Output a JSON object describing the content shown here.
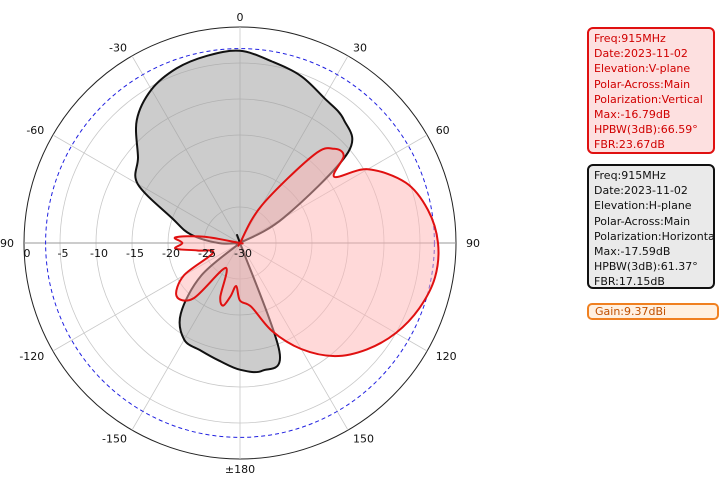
{
  "chart_data": {
    "type": "polar",
    "title": "",
    "angle_ticks": [
      {
        "angle": 0,
        "label": "0"
      },
      {
        "angle": 30,
        "label": "30"
      },
      {
        "angle": 60,
        "label": "60"
      },
      {
        "angle": 90,
        "label": "90"
      },
      {
        "angle": 120,
        "label": "120"
      },
      {
        "angle": 150,
        "label": "150"
      },
      {
        "angle": 180,
        "label": "±180"
      },
      {
        "angle": -150,
        "label": "-150"
      },
      {
        "angle": -120,
        "label": "-120"
      },
      {
        "angle": -90,
        "label": "-90"
      },
      {
        "angle": -60,
        "label": "-60"
      },
      {
        "angle": -30,
        "label": "-30"
      }
    ],
    "radial_ticks": [
      {
        "value": 0,
        "label": "0"
      },
      {
        "value": -5,
        "label": "-5"
      },
      {
        "value": -10,
        "label": "-10"
      },
      {
        "value": -15,
        "label": "-15"
      },
      {
        "value": -20,
        "label": "-20"
      },
      {
        "value": -25,
        "label": "-25"
      },
      {
        "value": -30,
        "label": "-30"
      }
    ],
    "rlim": [
      -30,
      0
    ],
    "reference_circle_db": -3,
    "grid": true,
    "series": [
      {
        "color": "#e01010",
        "fill": "#ffb4b4",
        "angles": [
          0,
          15,
          30,
          40,
          45,
          50,
          55,
          60,
          70,
          80,
          90,
          100,
          110,
          120,
          130,
          140,
          150,
          160,
          170,
          180,
          -175,
          -170,
          -165,
          -160,
          -150,
          -140,
          -130,
          -120,
          -110,
          -100,
          -95,
          -90,
          -85,
          -80,
          -70,
          -60,
          -50,
          -40,
          -30,
          -20,
          -10
        ],
        "values_db": [
          -30,
          -30,
          -24,
          -14,
          -11.5,
          -11.2,
          -14,
          -9.5,
          -5.5,
          -3.5,
          -2.5,
          -2.5,
          -3.5,
          -5,
          -7,
          -9.5,
          -13,
          -17,
          -21,
          -22,
          -24,
          -22.5,
          -21,
          -22,
          -26,
          -20,
          -18.5,
          -21,
          -26,
          -24,
          -21,
          -22,
          -21,
          -25,
          -30,
          -30,
          -30,
          -30,
          -30,
          -30,
          -30
        ]
      },
      {
        "color": "#111111",
        "fill": "#999999",
        "angles": [
          0,
          10,
          20,
          30,
          40,
          50,
          60,
          70,
          80,
          90,
          100,
          110,
          120,
          130,
          140,
          150,
          160,
          170,
          180,
          -170,
          -160,
          -150,
          -140,
          -130,
          -120,
          -110,
          -100,
          -90,
          -80,
          -70,
          -60,
          -50,
          -40,
          -30,
          -20,
          -10
        ],
        "values_db": [
          -3.3,
          -4.4,
          -5.3,
          -6.7,
          -7.6,
          -10.4,
          -23,
          -30,
          -30,
          -30,
          -30,
          -30,
          -30,
          -30,
          -30,
          -30,
          -14,
          -12,
          -12.4,
          -13.4,
          -14.1,
          -14.5,
          -17.2,
          -23,
          -30,
          -30,
          -30,
          -27,
          -23,
          -20,
          -13.6,
          -11.5,
          -7.7,
          -5.4,
          -4.2,
          -3.6
        ]
      }
    ]
  },
  "info_v": {
    "lines": [
      "Freq:915MHz",
      "Date:2023-11-02",
      "Elevation:V-plane",
      "Polar-Across:Main",
      "Polarization:Vertical",
      "Max:-16.79dB",
      "HPBW(3dB):66.59°",
      "FBR:23.67dB"
    ]
  },
  "info_h": {
    "lines": [
      "Freq:915MHz",
      "Date:2023-11-02",
      "Elevation:H-plane",
      "Polar-Across:Main",
      "Polarization:Horizontal",
      "Max:-17.59dB",
      "HPBW(3dB):61.37°",
      "FBR:17.15dB"
    ]
  },
  "gain": "Gain:9.37dBi"
}
